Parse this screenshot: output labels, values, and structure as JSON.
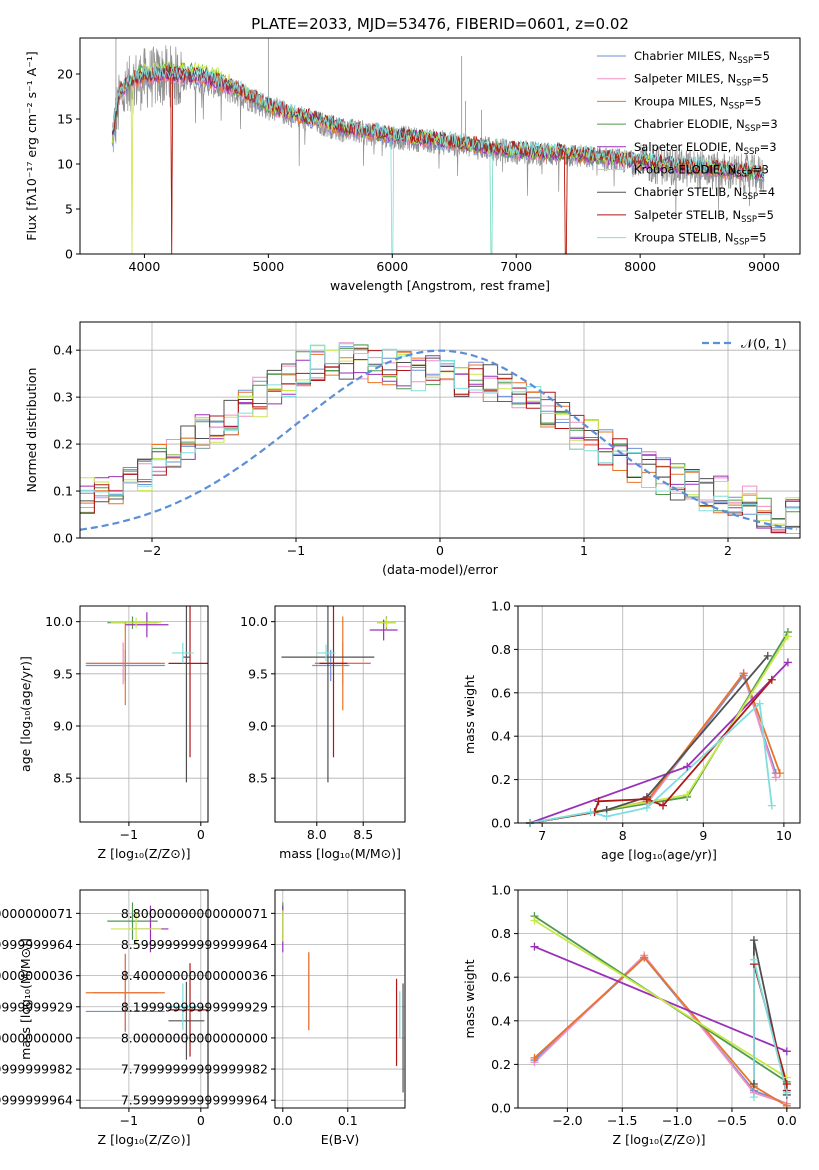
{
  "title": "PLATE=2033, MJD=53476, FIBERID=0601, z=0.02",
  "colors": {
    "c0": "#6f8fd6",
    "c1": "#ef8fc4",
    "c2": "#e8742a",
    "c3": "#4f9a4f",
    "c4": "#9a30b8",
    "c5": "#c8e84a",
    "c6": "#505050",
    "c7": "#b01818",
    "c8": "#80dede",
    "obs": "#909090",
    "gauss": "#5b8fd8"
  },
  "chart_data": [
    {
      "id": "spectrum",
      "type": "line",
      "xlabel": "wavelength [Angstrom, rest frame]",
      "ylabel": "Flux [fλ10⁻¹⁷ erg cm⁻² s⁻¹ A⁻¹]",
      "xlim": [
        3480,
        9290
      ],
      "ylim": [
        0,
        24
      ],
      "xticks": [
        4000,
        5000,
        6000,
        7000,
        8000,
        9000
      ],
      "yticks": [
        0,
        5,
        10,
        15,
        20
      ],
      "grid": false,
      "legend_position": "top-right",
      "legend": [
        {
          "label": "Chabrier MILES, N",
          "sub": "SSP",
          "rest": "=5",
          "color": "c0"
        },
        {
          "label": "Salpeter MILES, N",
          "sub": "SSP",
          "rest": "=5",
          "color": "c1"
        },
        {
          "label": "Kroupa MILES, N",
          "sub": "SSP",
          "rest": "=5",
          "color": "c2"
        },
        {
          "label": "Chabrier ELODIE, N",
          "sub": "SSP",
          "rest": "=3",
          "color": "c3"
        },
        {
          "label": "Salpeter ELODIE, N",
          "sub": "SSP",
          "rest": "=3",
          "color": "c4"
        },
        {
          "label": "Kroupa ELODIE, N",
          "sub": "SSP",
          "rest": "=3",
          "color": "c5"
        },
        {
          "label": "Chabrier STELIB, N",
          "sub": "SSP",
          "rest": "=4",
          "color": "c6"
        },
        {
          "label": "Salpeter STELIB, N",
          "sub": "SSP",
          "rest": "=5",
          "color": "c7"
        },
        {
          "label": "Kroupa STELIB, N",
          "sub": "SSP",
          "rest": "=5",
          "color": "c8"
        }
      ],
      "observed_continuum": [
        [
          3740,
          13
        ],
        [
          3800,
          17
        ],
        [
          3900,
          19
        ],
        [
          4000,
          19.5
        ],
        [
          4200,
          19.8
        ],
        [
          4500,
          19
        ],
        [
          4800,
          17.5
        ],
        [
          5000,
          16.2
        ],
        [
          5300,
          15
        ],
        [
          5600,
          13.8
        ],
        [
          6000,
          13
        ],
        [
          6300,
          12.6
        ],
        [
          6600,
          12
        ],
        [
          7000,
          11.3
        ],
        [
          7400,
          11
        ],
        [
          7800,
          10.4
        ],
        [
          8200,
          9.8
        ],
        [
          8600,
          9.2
        ],
        [
          9000,
          8.8
        ]
      ],
      "model_continuum": [
        [
          3740,
          13
        ],
        [
          3800,
          18
        ],
        [
          3900,
          19.3
        ],
        [
          4000,
          19.7
        ],
        [
          4200,
          20
        ],
        [
          4500,
          19.5
        ],
        [
          4800,
          18
        ],
        [
          5000,
          16.5
        ],
        [
          5300,
          15.2
        ],
        [
          5600,
          14
        ],
        [
          6000,
          13.2
        ],
        [
          6300,
          12.8
        ],
        [
          6600,
          12.2
        ],
        [
          7000,
          11.5
        ],
        [
          7400,
          11.2
        ],
        [
          7800,
          10.6
        ],
        [
          8200,
          10
        ],
        [
          8600,
          9.4
        ],
        [
          9000,
          9
        ]
      ],
      "model_dropouts": [
        {
          "series": "c2",
          "x": 4220
        },
        {
          "series": "c7",
          "x": 4220
        },
        {
          "series": "c8",
          "x": 6000
        },
        {
          "series": "c8",
          "x": 6800
        },
        {
          "series": "c5",
          "x": 3900
        },
        {
          "series": "c5",
          "x": 6800
        },
        {
          "series": "c2",
          "x": 7400
        },
        {
          "series": "c7",
          "x": 7400
        }
      ]
    },
    {
      "id": "residuals",
      "type": "histogram",
      "xlabel": "(data-model)/error",
      "ylabel": "Normed distribution",
      "xlim": [
        -2.5,
        2.5
      ],
      "ylim": [
        0,
        0.46
      ],
      "xticks": [
        -2,
        -1,
        0,
        1,
        2
      ],
      "yticks": [
        0.0,
        0.1,
        0.2,
        0.3,
        0.4
      ],
      "grid": true,
      "legend_position": "top-right",
      "legend": [
        {
          "label": "𝒩(0, 1)",
          "style": "dashed",
          "color": "gauss"
        }
      ],
      "bin_width": 0.1,
      "shape_mean": [
        0.03,
        0.04,
        0.05,
        0.07,
        0.08,
        0.09,
        0.1,
        0.11,
        0.12,
        0.14,
        0.16,
        0.18,
        0.2,
        0.22,
        0.24,
        0.26,
        0.28,
        0.3,
        0.32,
        0.34,
        0.36,
        0.37,
        0.38,
        0.38,
        0.38,
        0.37,
        0.36,
        0.36,
        0.35,
        0.35,
        0.35,
        0.34,
        0.34,
        0.33,
        0.32,
        0.31,
        0.29,
        0.27,
        0.25,
        0.23,
        0.21,
        0.19,
        0.17,
        0.16,
        0.15,
        0.13,
        0.12,
        0.11,
        0.1,
        0.09,
        0.08,
        0.07,
        0.06,
        0.05,
        0.05,
        0.04,
        0.04,
        0.03,
        0.03,
        0.02
      ],
      "hist_start": -3.0
    },
    {
      "id": "age-vs-Z",
      "type": "errorbar",
      "xlabel": "Z [log₁₀(Z/Z⊙)]",
      "ylabel": "age  [log₁₀(age/yr)]",
      "xlim": [
        -1.68,
        0.1
      ],
      "ylim": [
        8.08,
        10.15
      ],
      "xticks": [
        -1,
        0
      ],
      "yticks": [
        8.5,
        9.0,
        9.5,
        10.0
      ],
      "grid": true,
      "points": [
        {
          "c": "c0",
          "x": -1.05,
          "xerr": 0.55,
          "y": 9.58,
          "yerr": 0.15
        },
        {
          "c": "c1",
          "x": -1.08,
          "xerr": 0.5,
          "y": 9.6,
          "yerr": 0.2
        },
        {
          "c": "c2",
          "x": -1.05,
          "xerr": 0.55,
          "y": 9.6,
          "yerr": 0.4
        },
        {
          "c": "c3",
          "x": -0.95,
          "xerr": 0.35,
          "y": 9.99,
          "yerr": 0.06
        },
        {
          "c": "c4",
          "x": -0.75,
          "xerr": 0.3,
          "y": 9.97,
          "yerr": 0.12
        },
        {
          "c": "c5",
          "x": -0.9,
          "xerr": 0.35,
          "y": 9.99,
          "yerr": 0.05
        },
        {
          "c": "c6",
          "x": -0.2,
          "xerr": 0.05,
          "y": 9.66,
          "yerr": 1.2
        },
        {
          "c": "c7",
          "x": -0.15,
          "xerr": 0.3,
          "y": 9.6,
          "yerr": 0.9
        },
        {
          "c": "c8",
          "x": -0.25,
          "xerr": 0.15,
          "y": 9.7,
          "yerr": 0.1
        }
      ]
    },
    {
      "id": "age-vs-mass",
      "type": "errorbar",
      "xlabel": "mass [log₁₀(M/M⊙)]",
      "ylabel": "",
      "xlim": [
        7.55,
        8.95
      ],
      "ylim": [
        8.08,
        10.15
      ],
      "xticks": [
        8.0,
        8.5
      ],
      "yticks": [
        8.5,
        9.0,
        9.5,
        10.0
      ],
      "grid": true,
      "points": [
        {
          "c": "c0",
          "x": 8.15,
          "xerr": 0.2,
          "y": 9.58,
          "yerr": 0.15
        },
        {
          "c": "c1",
          "x": 8.28,
          "xerr": 0.3,
          "y": 9.6,
          "yerr": 0.2
        },
        {
          "c": "c2",
          "x": 8.28,
          "xerr": 0.3,
          "y": 9.6,
          "yerr": 0.45
        },
        {
          "c": "c3",
          "x": 8.75,
          "xerr": 0.1,
          "y": 9.99,
          "yerr": 0.06
        },
        {
          "c": "c4",
          "x": 8.72,
          "xerr": 0.15,
          "y": 9.92,
          "yerr": 0.1
        },
        {
          "c": "c5",
          "x": 8.75,
          "xerr": 0.1,
          "y": 9.99,
          "yerr": 0.05
        },
        {
          "c": "c6",
          "x": 8.12,
          "xerr": 0.5,
          "y": 9.66,
          "yerr": 1.2
        },
        {
          "c": "c7",
          "x": 8.18,
          "xerr": 0.15,
          "y": 9.6,
          "yerr": 0.9
        },
        {
          "c": "c8",
          "x": 8.1,
          "xerr": 0.1,
          "y": 9.7,
          "yerr": 0.08
        }
      ]
    },
    {
      "id": "mass-weight-vs-age",
      "type": "line",
      "xlabel": "age  [log₁₀(age/yr)]",
      "ylabel": "mass weight",
      "xlim": [
        6.7,
        10.2
      ],
      "ylim": [
        0,
        1.0
      ],
      "xticks": [
        7,
        8,
        9,
        10
      ],
      "yticks": [
        0.0,
        0.2,
        0.4,
        0.6,
        0.8,
        1.0
      ],
      "grid": true,
      "series": [
        {
          "c": "c0",
          "x": [
            6.85,
            7.8,
            8.3,
            9.5,
            9.9
          ],
          "y": [
            0.0,
            0.06,
            0.09,
            0.68,
            0.23
          ]
        },
        {
          "c": "c1",
          "x": [
            6.85,
            7.8,
            8.3,
            9.5,
            9.9
          ],
          "y": [
            0.0,
            0.06,
            0.09,
            0.69,
            0.21
          ]
        },
        {
          "c": "c2",
          "x": [
            6.85,
            7.8,
            8.3,
            9.5,
            9.95
          ],
          "y": [
            0.0,
            0.06,
            0.1,
            0.69,
            0.23
          ]
        },
        {
          "c": "c3",
          "x": [
            6.85,
            8.8,
            10.05
          ],
          "y": [
            0.0,
            0.12,
            0.88
          ]
        },
        {
          "c": "c4",
          "x": [
            6.85,
            8.8,
            10.05
          ],
          "y": [
            0.0,
            0.26,
            0.74
          ]
        },
        {
          "c": "c5",
          "x": [
            6.85,
            8.8,
            10.05
          ],
          "y": [
            0.0,
            0.13,
            0.86
          ]
        },
        {
          "c": "c6",
          "x": [
            6.85,
            7.8,
            8.3,
            9.8
          ],
          "y": [
            0.0,
            0.06,
            0.12,
            0.77
          ]
        },
        {
          "c": "c7",
          "x": [
            6.85,
            7.65,
            7.7,
            8.3,
            8.5,
            9.85
          ],
          "y": [
            0.0,
            0.05,
            0.1,
            0.11,
            0.08,
            0.66
          ]
        },
        {
          "c": "c8",
          "x": [
            6.85,
            7.6,
            7.8,
            8.3,
            9.7,
            9.85
          ],
          "y": [
            0.0,
            0.05,
            0.03,
            0.07,
            0.55,
            0.08
          ]
        }
      ]
    },
    {
      "id": "mass-vs-Z",
      "type": "errorbar",
      "xlabel": "Z [log₁₀(Z/Z⊙)]",
      "ylabel": "mass [log₁₀(M/M⊙)]",
      "xlim": [
        -1.68,
        0.1
      ],
      "ylim": [
        7.55,
        8.95
      ],
      "xticks": [
        -1,
        0
      ],
      "yticks": [
        7.6,
        7.8,
        8.0,
        8.2,
        8.4,
        8.6,
        8.8
      ],
      "grid": true,
      "points": [
        {
          "c": "c0",
          "x": -1.05,
          "xerr": 0.55,
          "y": 8.17,
          "yerr": 0.12
        },
        {
          "c": "c1",
          "x": -1.05,
          "xerr": 0.45,
          "y": 8.29,
          "yerr": 0.25
        },
        {
          "c": "c2",
          "x": -1.05,
          "xerr": 0.55,
          "y": 8.29,
          "yerr": 0.25
        },
        {
          "c": "c3",
          "x": -0.95,
          "xerr": 0.35,
          "y": 8.75,
          "yerr": 0.12
        },
        {
          "c": "c4",
          "x": -0.7,
          "xerr": 0.25,
          "y": 8.7,
          "yerr": 0.15
        },
        {
          "c": "c5",
          "x": -0.9,
          "xerr": 0.35,
          "y": 8.7,
          "yerr": 0.1
        },
        {
          "c": "c6",
          "x": -0.2,
          "xerr": 0.25,
          "y": 8.11,
          "yerr": 0.25
        },
        {
          "c": "c7",
          "x": -0.15,
          "xerr": 0.3,
          "y": 8.18,
          "yerr": 0.3
        },
        {
          "c": "c8",
          "x": -0.25,
          "xerr": 0.2,
          "y": 8.2,
          "yerr": 0.15
        }
      ]
    },
    {
      "id": "mass-vs-EBV",
      "type": "errorbar",
      "xlabel": "E(B-V)",
      "ylabel": "",
      "xlim": [
        -0.012,
        0.188
      ],
      "ylim": [
        7.55,
        8.95
      ],
      "xticks": [
        0.0,
        0.1
      ],
      "yticks": [
        7.6,
        7.8,
        8.0,
        8.2,
        8.4,
        8.6,
        8.8
      ],
      "grid": true,
      "points": [
        {
          "c": "c3",
          "x": 0.0,
          "xerr": 0.0,
          "y": 8.75,
          "yerr": 0.12
        },
        {
          "c": "c4",
          "x": 0.0,
          "xerr": 0.0,
          "y": 8.7,
          "yerr": 0.15
        },
        {
          "c": "c5",
          "x": 0.0,
          "xerr": 0.0,
          "y": 8.72,
          "yerr": 0.1
        },
        {
          "c": "c1",
          "x": 0.04,
          "xerr": 0.0,
          "y": 8.3,
          "yerr": 0.25
        },
        {
          "c": "c2",
          "x": 0.04,
          "xerr": 0.0,
          "y": 8.3,
          "yerr": 0.25
        },
        {
          "c": "c7",
          "x": 0.175,
          "xerr": 0.0,
          "y": 8.1,
          "yerr": 0.28
        },
        {
          "c": "c6",
          "x": 0.185,
          "xerr": 0.0,
          "y": 8.0,
          "yerr": 0.35
        },
        {
          "c": "c8",
          "x": 0.18,
          "xerr": 0.0,
          "y": 8.15,
          "yerr": 0.15
        }
      ]
    },
    {
      "id": "mass-weight-vs-Z",
      "type": "line",
      "xlabel": "Z [log₁₀(Z/Z⊙)]",
      "ylabel": "mass weight",
      "xlim": [
        -2.45,
        0.12
      ],
      "ylim": [
        0,
        1.0
      ],
      "xticks": [
        -2.0,
        -1.5,
        -1.0,
        -0.5,
        0.0
      ],
      "yticks": [
        0.0,
        0.2,
        0.4,
        0.6,
        0.8,
        1.0
      ],
      "grid": true,
      "series": [
        {
          "c": "c0",
          "x": [
            -2.3,
            -1.3,
            -0.3,
            0.0
          ],
          "y": [
            0.22,
            0.69,
            0.08,
            0.02
          ]
        },
        {
          "c": "c1",
          "x": [
            -2.3,
            -1.3,
            -0.3,
            0.0
          ],
          "y": [
            0.21,
            0.7,
            0.07,
            0.02
          ]
        },
        {
          "c": "c2",
          "x": [
            -2.3,
            -1.3,
            -0.3,
            0.0
          ],
          "y": [
            0.23,
            0.69,
            0.1,
            0.01
          ]
        },
        {
          "c": "c3",
          "x": [
            -2.3,
            0.0
          ],
          "y": [
            0.88,
            0.12
          ]
        },
        {
          "c": "c4",
          "x": [
            -2.3,
            0.0
          ],
          "y": [
            0.74,
            0.26
          ]
        },
        {
          "c": "c5",
          "x": [
            -2.3,
            0.0
          ],
          "y": [
            0.86,
            0.14
          ]
        },
        {
          "c": "c6",
          "x": [
            -0.3,
            -0.3,
            0.0
          ],
          "y": [
            0.11,
            0.77,
            0.06
          ]
        },
        {
          "c": "c7",
          "x": [
            -0.3,
            0.0,
            0.0
          ],
          "y": [
            0.66,
            0.11,
            0.08
          ]
        },
        {
          "c": "c8",
          "x": [
            -0.3,
            -0.3,
            0.0
          ],
          "y": [
            0.05,
            0.68,
            0.07
          ]
        }
      ]
    }
  ]
}
